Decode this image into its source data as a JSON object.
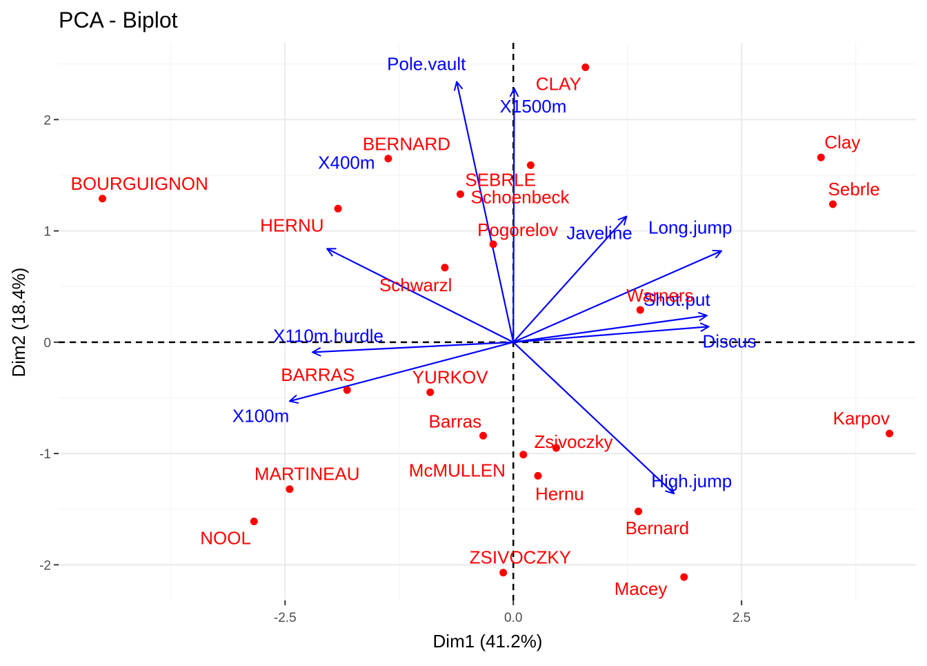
{
  "chart_data": {
    "type": "scatter",
    "title": "PCA - Biplot",
    "xlabel": "Dim1 (41.2%)",
    "ylabel": "Dim2 (18.4%)",
    "xlim": [
      -4.98,
      4.41
    ],
    "ylim": [
      -2.32,
      2.69
    ],
    "x_ticks": [
      -2.5,
      0.0,
      2.5
    ],
    "x_tick_labels": [
      "-2.5",
      "0.0",
      "2.5"
    ],
    "y_ticks": [
      -2,
      -1,
      0,
      1,
      2
    ],
    "y_tick_labels": [
      "-2",
      "-1",
      "0",
      "1",
      "2"
    ],
    "grid": true,
    "reference_lines": [
      {
        "axis": "x",
        "value": 0,
        "style": "dashed"
      },
      {
        "axis": "y",
        "value": 0,
        "style": "dashed"
      }
    ],
    "colors": {
      "individuals": "#ff0000",
      "variables": "#0000ff",
      "grid_major": "#ebebeb",
      "grid_minor": "#f4f4f4",
      "tick_text": "#4d4d4d"
    },
    "individuals": [
      {
        "name": "SEBRLE",
        "x": 0.19,
        "y": 1.59
      },
      {
        "name": "CLAY",
        "x": 0.79,
        "y": 2.47
      },
      {
        "name": "BERNARD",
        "x": -1.37,
        "y": 1.65
      },
      {
        "name": "YURKOV",
        "x": -0.91,
        "y": -0.45
      },
      {
        "name": "ZSIVOCZKY",
        "x": -0.11,
        "y": -2.07
      },
      {
        "name": "McMULLEN",
        "x": 0.11,
        "y": -1.01
      },
      {
        "name": "MARTINEAU",
        "x": -2.45,
        "y": -1.32
      },
      {
        "name": "HERNU",
        "x": -1.92,
        "y": 1.2
      },
      {
        "name": "BARRAS",
        "x": -1.82,
        "y": -0.43
      },
      {
        "name": "NOOL",
        "x": -2.84,
        "y": -1.61
      },
      {
        "name": "BOURGUIGNON",
        "x": -4.5,
        "y": 1.29
      },
      {
        "name": "Sebrle",
        "x": 3.5,
        "y": 1.24
      },
      {
        "name": "Clay",
        "x": 3.37,
        "y": 1.66
      },
      {
        "name": "Karpov",
        "x": 4.12,
        "y": -0.82
      },
      {
        "name": "Macey",
        "x": 1.87,
        "y": -2.11
      },
      {
        "name": "Warners",
        "x": 1.39,
        "y": 0.29
      },
      {
        "name": "Zsivoczky",
        "x": 0.47,
        "y": -0.95
      },
      {
        "name": "Hernu",
        "x": 0.27,
        "y": -1.2
      },
      {
        "name": "Bernard",
        "x": 1.37,
        "y": -1.52
      },
      {
        "name": "Schwarzl",
        "x": -0.75,
        "y": 0.67
      },
      {
        "name": "Pogorelov",
        "x": -0.22,
        "y": 0.88
      },
      {
        "name": "Schoenbeck",
        "x": -0.58,
        "y": 1.33
      },
      {
        "name": "Barras",
        "x": -0.33,
        "y": -0.84
      }
    ],
    "variables": [
      {
        "name": "X100m",
        "x": -2.45,
        "y": -0.53
      },
      {
        "name": "Long.jump",
        "x": 2.28,
        "y": 0.82
      },
      {
        "name": "Shot.put",
        "x": 2.12,
        "y": 0.24
      },
      {
        "name": "High.jump",
        "x": 1.76,
        "y": -1.36
      },
      {
        "name": "X400m",
        "x": -2.04,
        "y": 0.84
      },
      {
        "name": "X110m.hurdle",
        "x": -2.2,
        "y": -0.09
      },
      {
        "name": "Discus",
        "x": 2.14,
        "y": 0.14
      },
      {
        "name": "Pole.vault",
        "x": -0.62,
        "y": 2.34
      },
      {
        "name": "Javeline",
        "x": 1.24,
        "y": 1.13
      },
      {
        "name": "X1500m",
        "x": 0.01,
        "y": 2.28
      }
    ]
  }
}
